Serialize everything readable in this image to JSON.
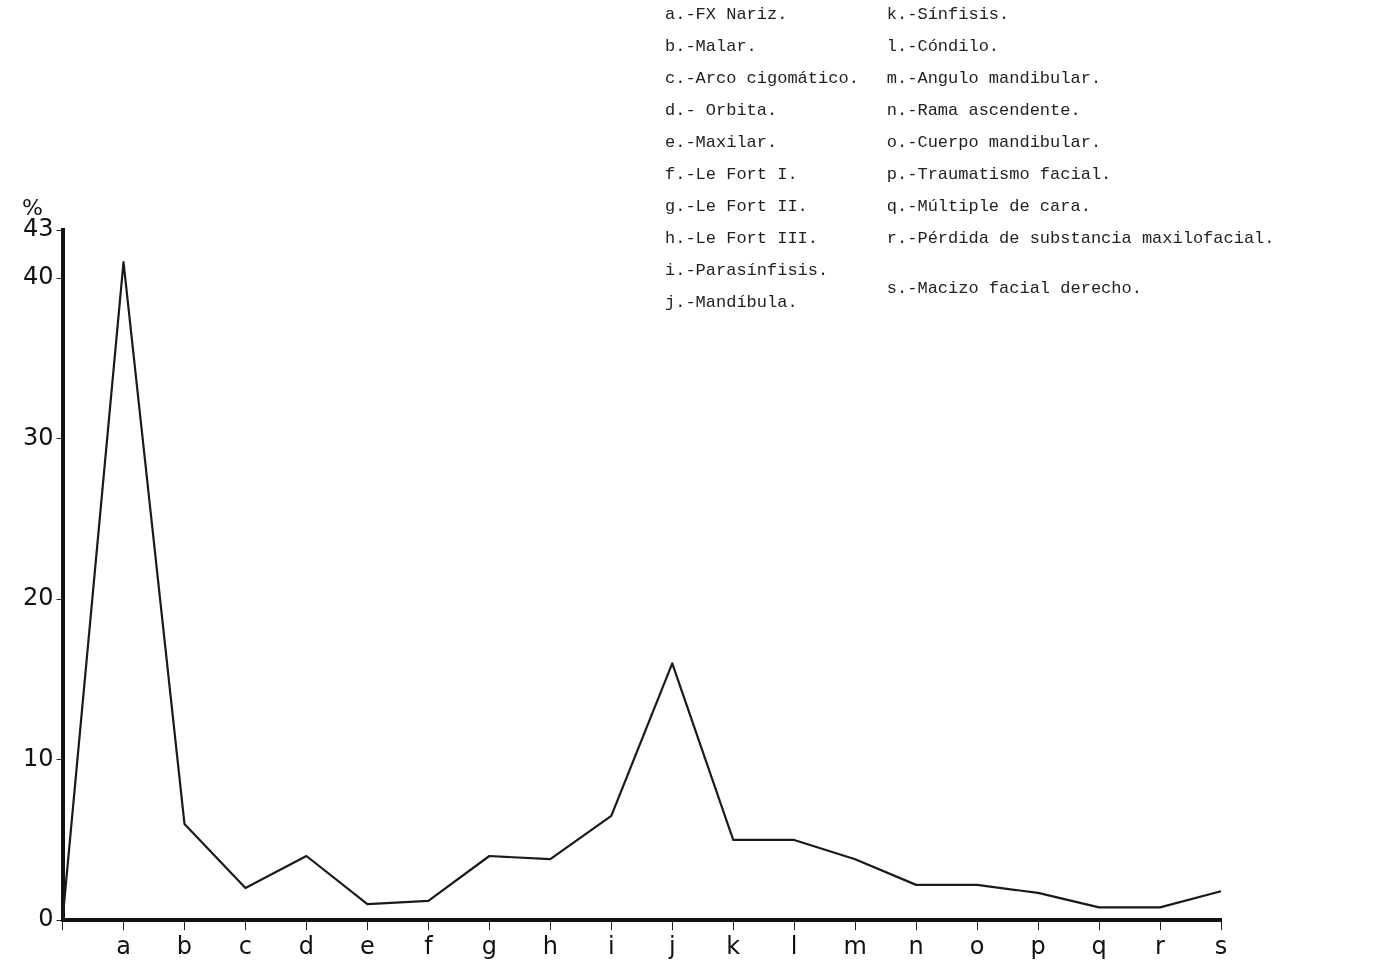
{
  "chart_data": {
    "type": "line",
    "ylabel": "%",
    "categories": [
      null,
      "a",
      "b",
      "c",
      "d",
      "e",
      "f",
      "g",
      "h",
      "i",
      "j",
      "k",
      "l",
      "m",
      "n",
      "o",
      "p",
      "q",
      "r",
      "s"
    ],
    "series": [
      {
        "color": "#1a1a1a",
        "values": [
          0,
          41,
          6,
          2,
          4,
          1,
          1.2,
          4,
          3.8,
          6.5,
          16,
          5,
          5,
          3.8,
          2.2,
          2.2,
          1.7,
          0.8,
          0.8,
          1.8
        ]
      }
    ],
    "ylim": [
      0,
      43
    ],
    "yticks": [
      0,
      10,
      20,
      30,
      40,
      43
    ],
    "grid": false,
    "legend": false,
    "marker": "none",
    "line_style": "solid",
    "annotations": [
      "a.-FX Nariz.",
      "b.-Malar.",
      "c.-Arco cigomático.",
      "d.- Orbita.",
      "e.-Maxilar.",
      "f.-Le Fort I.",
      "g.-Le Fort II.",
      "h.-Le Fort III.",
      "i.-Parasínfisis.",
      "j.-Mandíbula.",
      "k.-Sínfisis.",
      "l.-Cóndilo.",
      "m.-Angulo mandibular.",
      "n.-Rama ascendente.",
      "o.-Cuerpo mandibular.",
      "p.-Traumatismo facial.",
      "q.-Múltiple de cara.",
      "r.-Pérdida de substancia maxilofacial.",
      "s.-Macizo facial derecho."
    ]
  }
}
